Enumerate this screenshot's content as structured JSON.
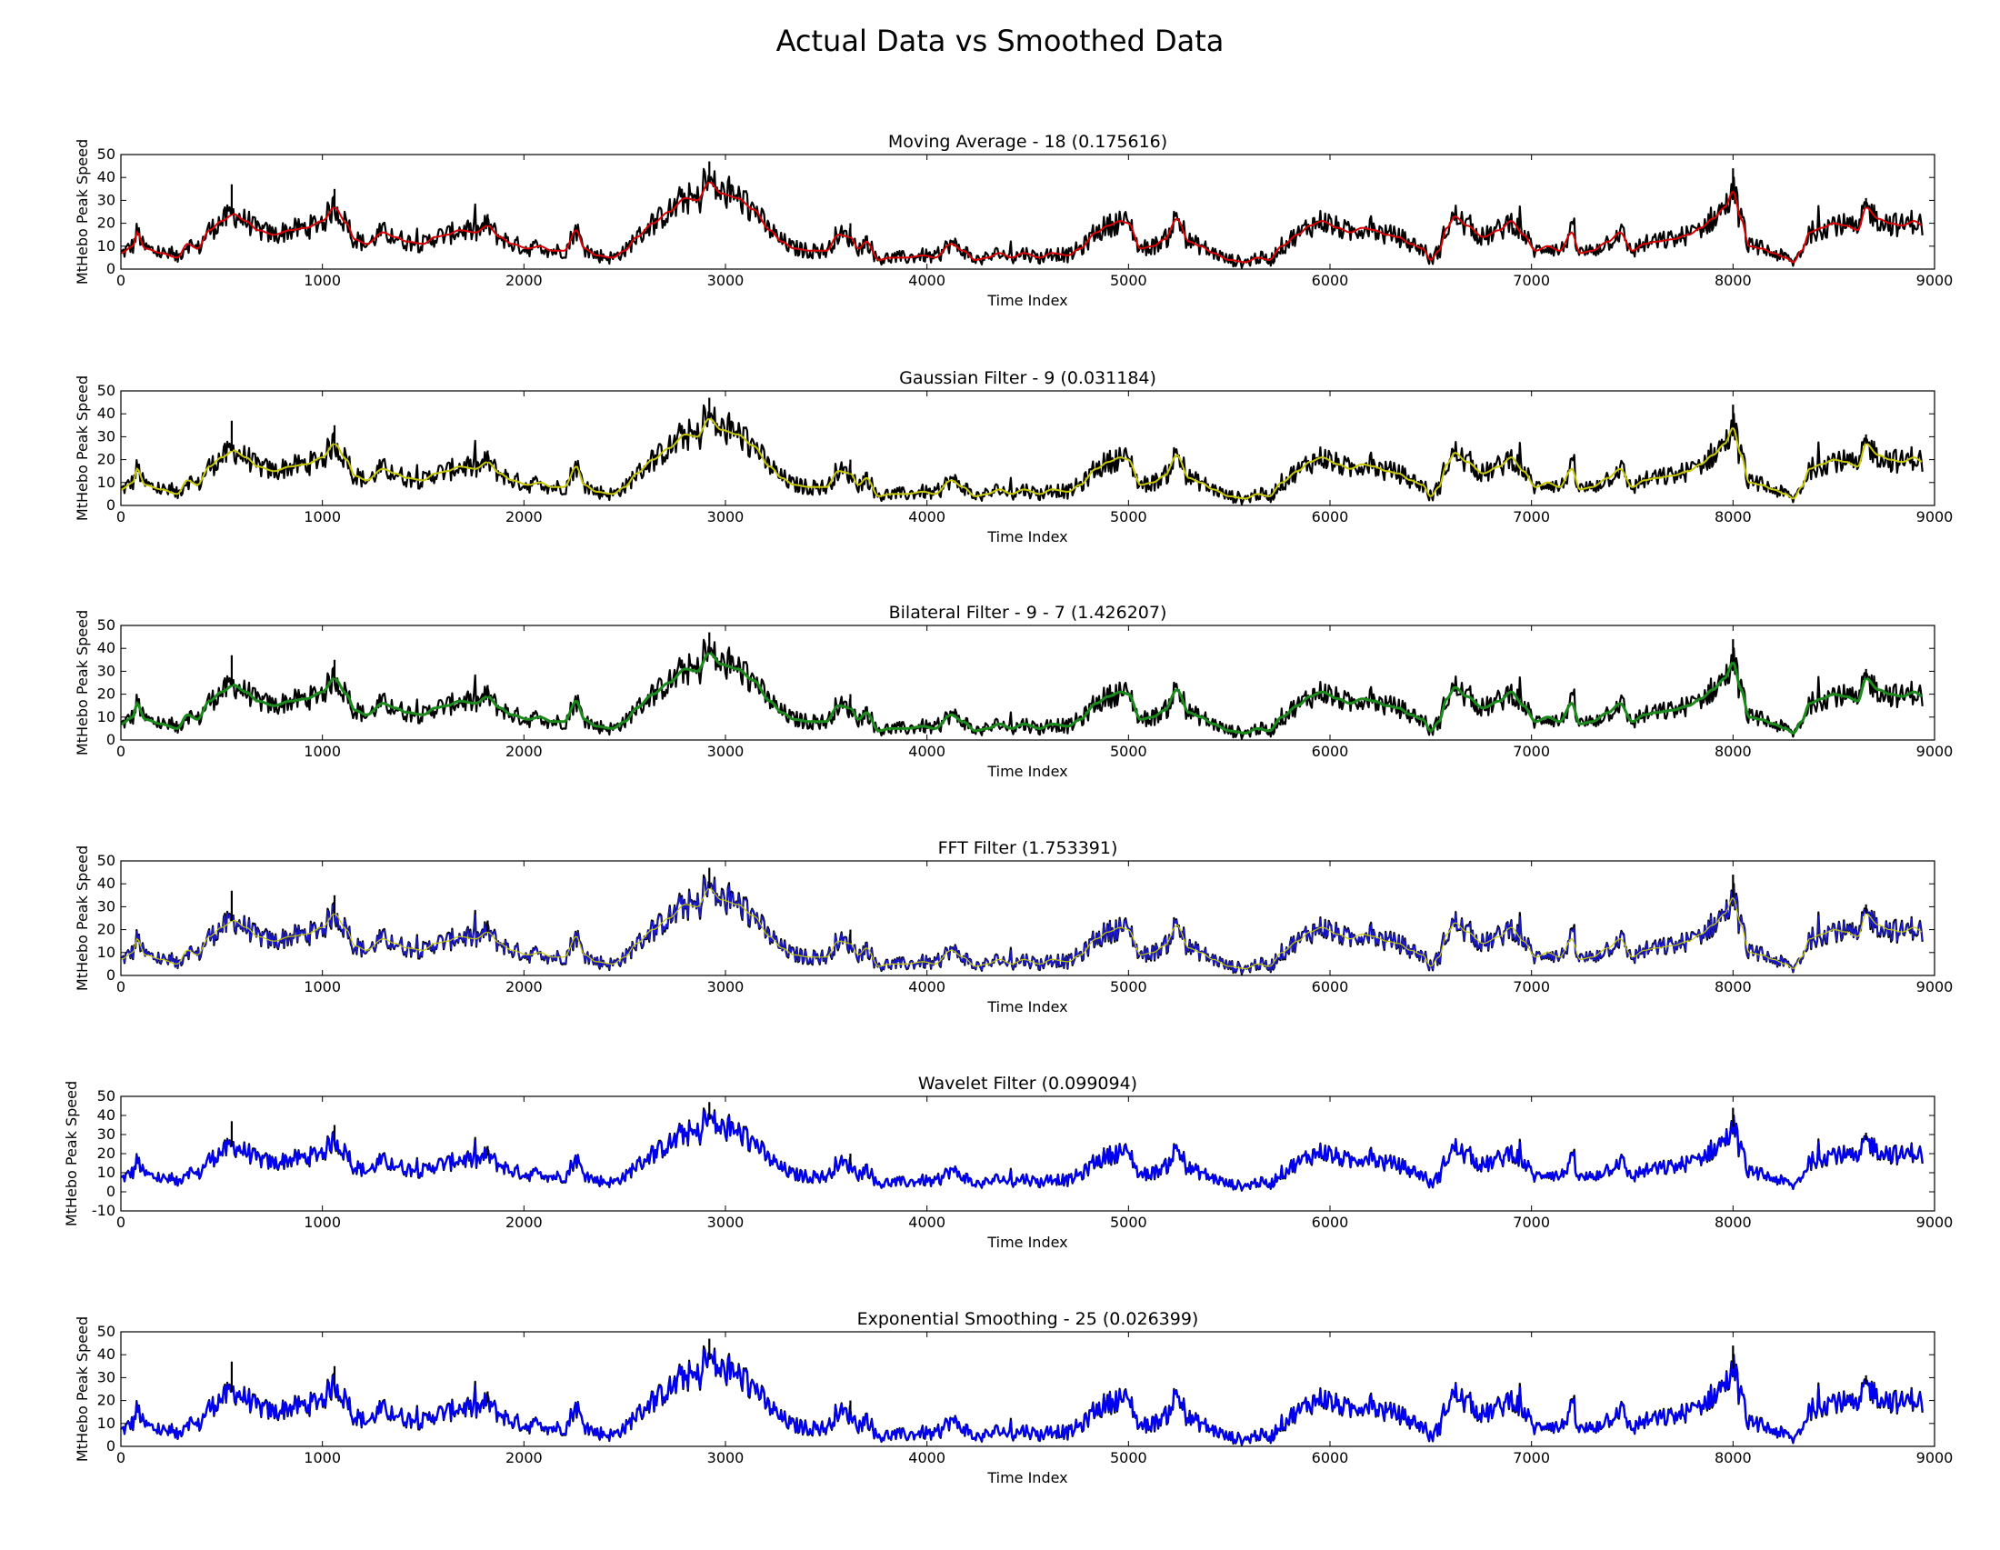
{
  "figure": {
    "title": "Actual Data vs Smoothed Data"
  },
  "chart_data": [
    {
      "type": "line",
      "title": "Moving Average - 18 (0.175616)",
      "xlabel": "Time Index",
      "ylabel": "MtHebo Peak Speed",
      "xlim": [
        0,
        9000
      ],
      "ylim": [
        0,
        50
      ],
      "xticks": [
        0,
        1000,
        2000,
        3000,
        4000,
        5000,
        6000,
        7000,
        8000,
        9000
      ],
      "yticks": [
        0,
        10,
        20,
        30,
        40,
        50
      ],
      "grid": false,
      "series": [
        {
          "role": "actual",
          "color": "#000000"
        },
        {
          "role": "smoothed",
          "color": "#dd0000"
        }
      ]
    },
    {
      "type": "line",
      "title": "Gaussian Filter - 9 (0.031184)",
      "xlabel": "Time Index",
      "ylabel": "MtHebo Peak Speed",
      "xlim": [
        0,
        9000
      ],
      "ylim": [
        0,
        50
      ],
      "xticks": [
        0,
        1000,
        2000,
        3000,
        4000,
        5000,
        6000,
        7000,
        8000,
        9000
      ],
      "yticks": [
        0,
        10,
        20,
        30,
        40,
        50
      ],
      "grid": false,
      "series": [
        {
          "role": "actual",
          "color": "#000000"
        },
        {
          "role": "smoothed",
          "color": "#c8c800"
        }
      ]
    },
    {
      "type": "line",
      "title": "Bilateral Filter - 9 - 7 (1.426207)",
      "xlabel": "Time Index",
      "ylabel": "MtHebo Peak Speed",
      "xlim": [
        0,
        9000
      ],
      "ylim": [
        0,
        50
      ],
      "xticks": [
        0,
        1000,
        2000,
        3000,
        4000,
        5000,
        6000,
        7000,
        8000,
        9000
      ],
      "yticks": [
        0,
        10,
        20,
        30,
        40,
        50
      ],
      "grid": false,
      "series": [
        {
          "role": "actual",
          "color": "#000000"
        },
        {
          "role": "smoothed",
          "color": "#1a8a1a"
        }
      ]
    },
    {
      "type": "line",
      "title": "FFT Filter (1.753391)",
      "xlabel": "Time Index",
      "ylabel": "MtHebo Peak Speed",
      "xlim": [
        0,
        9000
      ],
      "ylim": [
        0,
        50
      ],
      "xticks": [
        0,
        1000,
        2000,
        3000,
        4000,
        5000,
        6000,
        7000,
        8000,
        9000
      ],
      "yticks": [
        0,
        10,
        20,
        30,
        40,
        50
      ],
      "grid": false,
      "series": [
        {
          "role": "actual",
          "color": "#000000"
        },
        {
          "role": "smoothed",
          "color": "#1a1acc"
        }
      ]
    },
    {
      "type": "line",
      "title": "Wavelet Filter (0.099094)",
      "xlabel": "Time Index",
      "ylabel": "MtHebo Peak Speed",
      "xlim": [
        0,
        9000
      ],
      "ylim": [
        -10,
        50
      ],
      "xticks": [
        0,
        1000,
        2000,
        3000,
        4000,
        5000,
        6000,
        7000,
        8000,
        9000
      ],
      "yticks": [
        -10,
        0,
        10,
        20,
        30,
        40,
        50
      ],
      "grid": false,
      "series": [
        {
          "role": "actual",
          "color": "#000000"
        },
        {
          "role": "smoothed",
          "color": "#0000ee"
        }
      ]
    },
    {
      "type": "line",
      "title": "Exponential Smoothing - 25 (0.026399)",
      "xlabel": "Time Index",
      "ylabel": "MtHebo Peak Speed",
      "xlim": [
        0,
        9000
      ],
      "ylim": [
        0,
        50
      ],
      "xticks": [
        0,
        1000,
        2000,
        3000,
        4000,
        5000,
        6000,
        7000,
        8000,
        9000
      ],
      "yticks": [
        0,
        10,
        20,
        30,
        40,
        50
      ],
      "grid": false,
      "series": [
        {
          "role": "actual",
          "color": "#000000"
        },
        {
          "role": "smoothed",
          "color": "#0000ee"
        }
      ]
    }
  ],
  "signal": {
    "anchors": [
      [
        0,
        7
      ],
      [
        60,
        10
      ],
      [
        80,
        16
      ],
      [
        120,
        9
      ],
      [
        200,
        7
      ],
      [
        280,
        5
      ],
      [
        330,
        11
      ],
      [
        380,
        9
      ],
      [
        440,
        17
      ],
      [
        500,
        21
      ],
      [
        560,
        24
      ],
      [
        620,
        21
      ],
      [
        680,
        17
      ],
      [
        760,
        15
      ],
      [
        840,
        17
      ],
      [
        920,
        18
      ],
      [
        1000,
        21
      ],
      [
        1060,
        27
      ],
      [
        1120,
        20
      ],
      [
        1160,
        13
      ],
      [
        1220,
        11
      ],
      [
        1300,
        16
      ],
      [
        1360,
        14
      ],
      [
        1420,
        12
      ],
      [
        1500,
        11
      ],
      [
        1560,
        14
      ],
      [
        1620,
        15
      ],
      [
        1680,
        17
      ],
      [
        1760,
        16
      ],
      [
        1820,
        19
      ],
      [
        1880,
        14
      ],
      [
        1940,
        11
      ],
      [
        2020,
        9
      ],
      [
        2080,
        10
      ],
      [
        2140,
        8
      ],
      [
        2200,
        8
      ],
      [
        2260,
        17
      ],
      [
        2300,
        9
      ],
      [
        2360,
        6
      ],
      [
        2440,
        5
      ],
      [
        2500,
        8
      ],
      [
        2560,
        14
      ],
      [
        2640,
        20
      ],
      [
        2720,
        25
      ],
      [
        2800,
        31
      ],
      [
        2860,
        30
      ],
      [
        2920,
        38
      ],
      [
        2980,
        33
      ],
      [
        3060,
        31
      ],
      [
        3140,
        26
      ],
      [
        3220,
        17
      ],
      [
        3280,
        12
      ],
      [
        3340,
        9
      ],
      [
        3420,
        8
      ],
      [
        3500,
        8
      ],
      [
        3560,
        15
      ],
      [
        3620,
        14
      ],
      [
        3660,
        9
      ],
      [
        3700,
        12
      ],
      [
        3760,
        4
      ],
      [
        3820,
        5
      ],
      [
        3900,
        5
      ],
      [
        3980,
        6
      ],
      [
        4040,
        5
      ],
      [
        4120,
        11
      ],
      [
        4180,
        8
      ],
      [
        4240,
        4
      ],
      [
        4300,
        5
      ],
      [
        4360,
        7
      ],
      [
        4420,
        5
      ],
      [
        4480,
        7
      ],
      [
        4560,
        5
      ],
      [
        4620,
        7
      ],
      [
        4700,
        6
      ],
      [
        4760,
        9
      ],
      [
        4840,
        16
      ],
      [
        4900,
        19
      ],
      [
        4960,
        21
      ],
      [
        5000,
        20
      ],
      [
        5060,
        9
      ],
      [
        5120,
        10
      ],
      [
        5180,
        13
      ],
      [
        5240,
        22
      ],
      [
        5300,
        12
      ],
      [
        5360,
        10
      ],
      [
        5420,
        7
      ],
      [
        5500,
        4
      ],
      [
        5580,
        3
      ],
      [
        5640,
        5
      ],
      [
        5700,
        4
      ],
      [
        5760,
        10
      ],
      [
        5840,
        15
      ],
      [
        5900,
        19
      ],
      [
        5960,
        21
      ],
      [
        6040,
        18
      ],
      [
        6100,
        16
      ],
      [
        6160,
        18
      ],
      [
        6220,
        17
      ],
      [
        6280,
        15
      ],
      [
        6340,
        14
      ],
      [
        6400,
        11
      ],
      [
        6460,
        9
      ],
      [
        6500,
        4
      ],
      [
        6540,
        8
      ],
      [
        6580,
        18
      ],
      [
        6620,
        23
      ],
      [
        6680,
        19
      ],
      [
        6760,
        14
      ],
      [
        6840,
        17
      ],
      [
        6900,
        21
      ],
      [
        6960,
        15
      ],
      [
        7020,
        8
      ],
      [
        7080,
        10
      ],
      [
        7140,
        8
      ],
      [
        7200,
        16
      ],
      [
        7240,
        7
      ],
      [
        7300,
        8
      ],
      [
        7380,
        12
      ],
      [
        7440,
        16
      ],
      [
        7500,
        8
      ],
      [
        7560,
        11
      ],
      [
        7620,
        12
      ],
      [
        7700,
        13
      ],
      [
        7780,
        15
      ],
      [
        7840,
        18
      ],
      [
        7900,
        22
      ],
      [
        7960,
        27
      ],
      [
        8000,
        34
      ],
      [
        8040,
        22
      ],
      [
        8080,
        10
      ],
      [
        8140,
        9
      ],
      [
        8200,
        7
      ],
      [
        8260,
        5
      ],
      [
        8300,
        3
      ],
      [
        8340,
        8
      ],
      [
        8380,
        16
      ],
      [
        8440,
        18
      ],
      [
        8500,
        20
      ],
      [
        8560,
        19
      ],
      [
        8620,
        17
      ],
      [
        8660,
        27
      ],
      [
        8720,
        22
      ],
      [
        8780,
        20
      ],
      [
        8840,
        19
      ],
      [
        8900,
        21
      ],
      [
        8940,
        19
      ]
    ],
    "x_end": 8940
  }
}
